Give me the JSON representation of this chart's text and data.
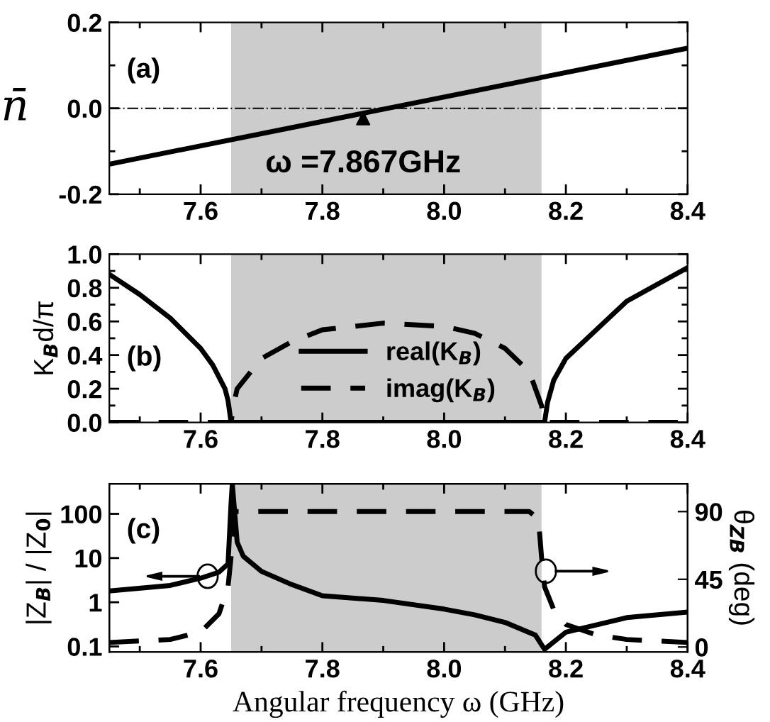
{
  "chart_data": [
    {
      "type": "line",
      "ylabel": "n̄",
      "xlim": [
        7.45,
        8.4
      ],
      "ylim": [
        -0.2,
        0.2
      ],
      "xticks": [
        {
          "value": 7.5,
          "label": null
        },
        7.6,
        {
          "value": 7.7,
          "label": null
        },
        7.8,
        {
          "value": 7.9,
          "label": null
        },
        {
          "value": 8,
          "label": "8.0"
        },
        {
          "value": 8.1,
          "label": null
        },
        8.2,
        {
          "value": 8.3,
          "label": null
        },
        8.4
      ],
      "yticks": [
        -0.2,
        {
          "value": -0.1,
          "label": null
        },
        {
          "value": 0,
          "label": "0.0"
        },
        {
          "value": 0.1,
          "label": null
        },
        0.2
      ],
      "series": [
        {
          "color": "#000000",
          "x": [
            7.45,
            8.4
          ],
          "values": [
            -0.13,
            0.14
          ]
        }
      ],
      "bands": [
        {
          "axis": "x",
          "from": 7.65,
          "to": 8.16,
          "color": "#cccccc"
        }
      ],
      "ref_lines": [
        {
          "axis": "y",
          "value": 0,
          "line_style": "dashdot",
          "color": "#000000"
        }
      ],
      "annotations": [
        "(a)",
        {
          "text": "ω =7.867GHz",
          "x": 7.867,
          "y": 0
        }
      ],
      "grid": false,
      "legend": false
    },
    {
      "type": "line",
      "ylabel": "K$_{B}$d/π",
      "xlim": [
        7.45,
        8.4
      ],
      "ylim": [
        0,
        1
      ],
      "xticks": [
        {
          "value": 7.5,
          "label": null
        },
        7.6,
        {
          "value": 7.7,
          "label": null
        },
        7.8,
        {
          "value": 7.9,
          "label": null
        },
        {
          "value": 8,
          "label": "8.0"
        },
        {
          "value": 8.1,
          "label": null
        },
        8.2,
        {
          "value": 8.3,
          "label": null
        },
        8.4
      ],
      "yticks": [
        {
          "value": 0,
          "label": "0.0"
        },
        {
          "value": 0.1,
          "label": null
        },
        0.2,
        {
          "value": 0.3,
          "label": null
        },
        0.4,
        {
          "value": 0.5,
          "label": null
        },
        0.6,
        {
          "value": 0.7,
          "label": null
        },
        0.8,
        {
          "value": 0.9,
          "label": null
        },
        {
          "value": 1,
          "label": "1.0"
        }
      ],
      "series": [
        {
          "name": "real(K$_{B}$)",
          "color": "#000000",
          "line_style": "solid",
          "x": [
            7.45,
            7.5,
            7.55,
            7.6,
            7.62,
            7.64,
            7.645,
            7.65,
            7.9,
            8.165,
            8.17,
            8.18,
            8.2,
            8.25,
            8.3,
            8.35,
            8.4
          ],
          "values": [
            0.88,
            0.76,
            0.62,
            0.44,
            0.34,
            0.2,
            0.13,
            0.0,
            0.0,
            0.0,
            0.12,
            0.25,
            0.38,
            0.55,
            0.72,
            0.82,
            0.92
          ]
        },
        {
          "name": "imag(K$_{B}$)",
          "color": "#000000",
          "line_style": "dashed",
          "x": [
            7.45,
            7.65,
            7.655,
            7.66,
            7.7,
            7.75,
            7.8,
            7.9,
            8.0,
            8.05,
            8.1,
            8.14,
            8.16,
            8.165,
            8.4
          ],
          "values": [
            0.0,
            0.0,
            0.12,
            0.2,
            0.38,
            0.48,
            0.55,
            0.59,
            0.57,
            0.53,
            0.44,
            0.3,
            0.1,
            0.0,
            0.0
          ]
        }
      ],
      "bands": [
        {
          "axis": "x",
          "from": 7.65,
          "to": 8.16,
          "color": "#cccccc"
        }
      ],
      "annotations": [
        "(b)"
      ],
      "grid": false,
      "legend": "bottom"
    },
    {
      "type": "line",
      "ylabel": "|Z$_{B}$| / |Z$_{0}$|",
      "y2label": "θ$_{ZB}$ (deg)",
      "xlabel": "Angular frequency ω (GHz)",
      "log": "y",
      "xlim": [
        7.45,
        8.4
      ],
      "ylim": [
        0.075,
        480
      ],
      "y2lim": [
        -3.3,
        108.5
      ],
      "xticks": [
        {
          "value": 7.5,
          "label": null
        },
        7.6,
        {
          "value": 7.7,
          "label": null
        },
        7.8,
        {
          "value": 7.9,
          "label": null
        },
        {
          "value": 8,
          "label": "8.0"
        },
        {
          "value": 8.1,
          "label": null
        },
        8.2,
        {
          "value": 8.3,
          "label": null
        },
        8.4
      ],
      "yticks": [
        0.1,
        1,
        10,
        100
      ],
      "y2ticks": [
        0,
        45,
        90
      ],
      "series": [
        {
          "color": "#000000",
          "line_style": "solid",
          "x": [
            7.45,
            7.55,
            7.6,
            7.63,
            7.645,
            7.65,
            7.652,
            7.66,
            7.67,
            7.7,
            7.75,
            7.8,
            7.9,
            8.0,
            8.05,
            8.1,
            8.15,
            8.165,
            8.2,
            8.3,
            8.4
          ],
          "values": [
            1.8,
            2.4,
            3.5,
            4.8,
            7.4,
            180,
            480,
            23,
            11,
            5,
            2.5,
            1.4,
            1.1,
            0.7,
            0.52,
            0.35,
            0.18,
            0.086,
            0.21,
            0.45,
            0.6
          ]
        },
        {
          "color": "#000000",
          "line_style": "dashed",
          "axis": "y2",
          "x": [
            7.45,
            7.55,
            7.6,
            7.63,
            7.645,
            7.65,
            7.655,
            8.14,
            8.155,
            8.16,
            8.165,
            8.18,
            8.2,
            8.25,
            8.3,
            8.4
          ],
          "values": [
            3,
            5,
            10,
            22,
            40,
            60,
            90,
            90,
            85,
            60,
            40,
            25,
            15,
            8,
            5,
            3
          ]
        }
      ],
      "bands": [
        {
          "axis": "x",
          "from": 7.65,
          "to": 8.16,
          "color": "#cccccc"
        }
      ],
      "annotations": [
        "(c)"
      ],
      "grid": false,
      "legend": false
    }
  ]
}
